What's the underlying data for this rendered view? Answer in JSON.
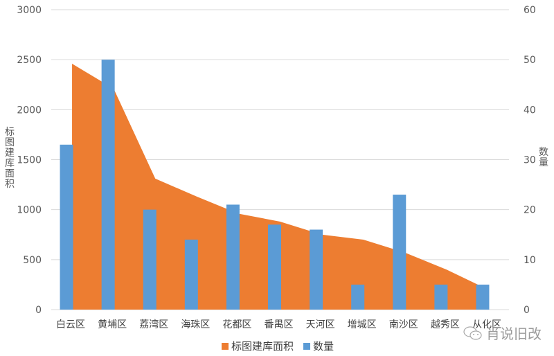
{
  "chart_data": {
    "type": "combo-area-bar",
    "title": "",
    "categories": [
      "白云区",
      "黄埔区",
      "荔湾区",
      "海珠区",
      "花都区",
      "番禺区",
      "天河区",
      "增城区",
      "南沙区",
      "越秀区",
      "从化区"
    ],
    "series": [
      {
        "name": "标图建库面积",
        "type": "area",
        "axis": "left",
        "color": "#ED7D31",
        "values": [
          2460,
          2210,
          1310,
          1130,
          960,
          880,
          750,
          700,
          570,
          400,
          200
        ]
      },
      {
        "name": "数量",
        "type": "bar",
        "axis": "right",
        "color": "#5B9BD5",
        "values": [
          33,
          50,
          20,
          14,
          21,
          17,
          16,
          5,
          23,
          5,
          5
        ]
      }
    ],
    "ylabel": "标图建库面积",
    "y2label": "数量",
    "xlabel": "",
    "ylim": [
      0,
      3000
    ],
    "y2lim": [
      0,
      60
    ],
    "yticks": [
      "0",
      "500",
      "1000",
      "1500",
      "2000",
      "2500",
      "3000"
    ],
    "y2ticks": [
      "0",
      "10",
      "20",
      "30",
      "40",
      "50",
      "60"
    ],
    "grid": true,
    "legend_position": "bottom"
  },
  "axes": {
    "left_title": "标图建库面积",
    "right_title": "数量"
  },
  "legend": {
    "items": [
      {
        "label": "标图建库面积",
        "color": "#ED7D31"
      },
      {
        "label": "数量",
        "color": "#5B9BD5"
      }
    ]
  },
  "watermark": {
    "text": "肖说旧改"
  }
}
